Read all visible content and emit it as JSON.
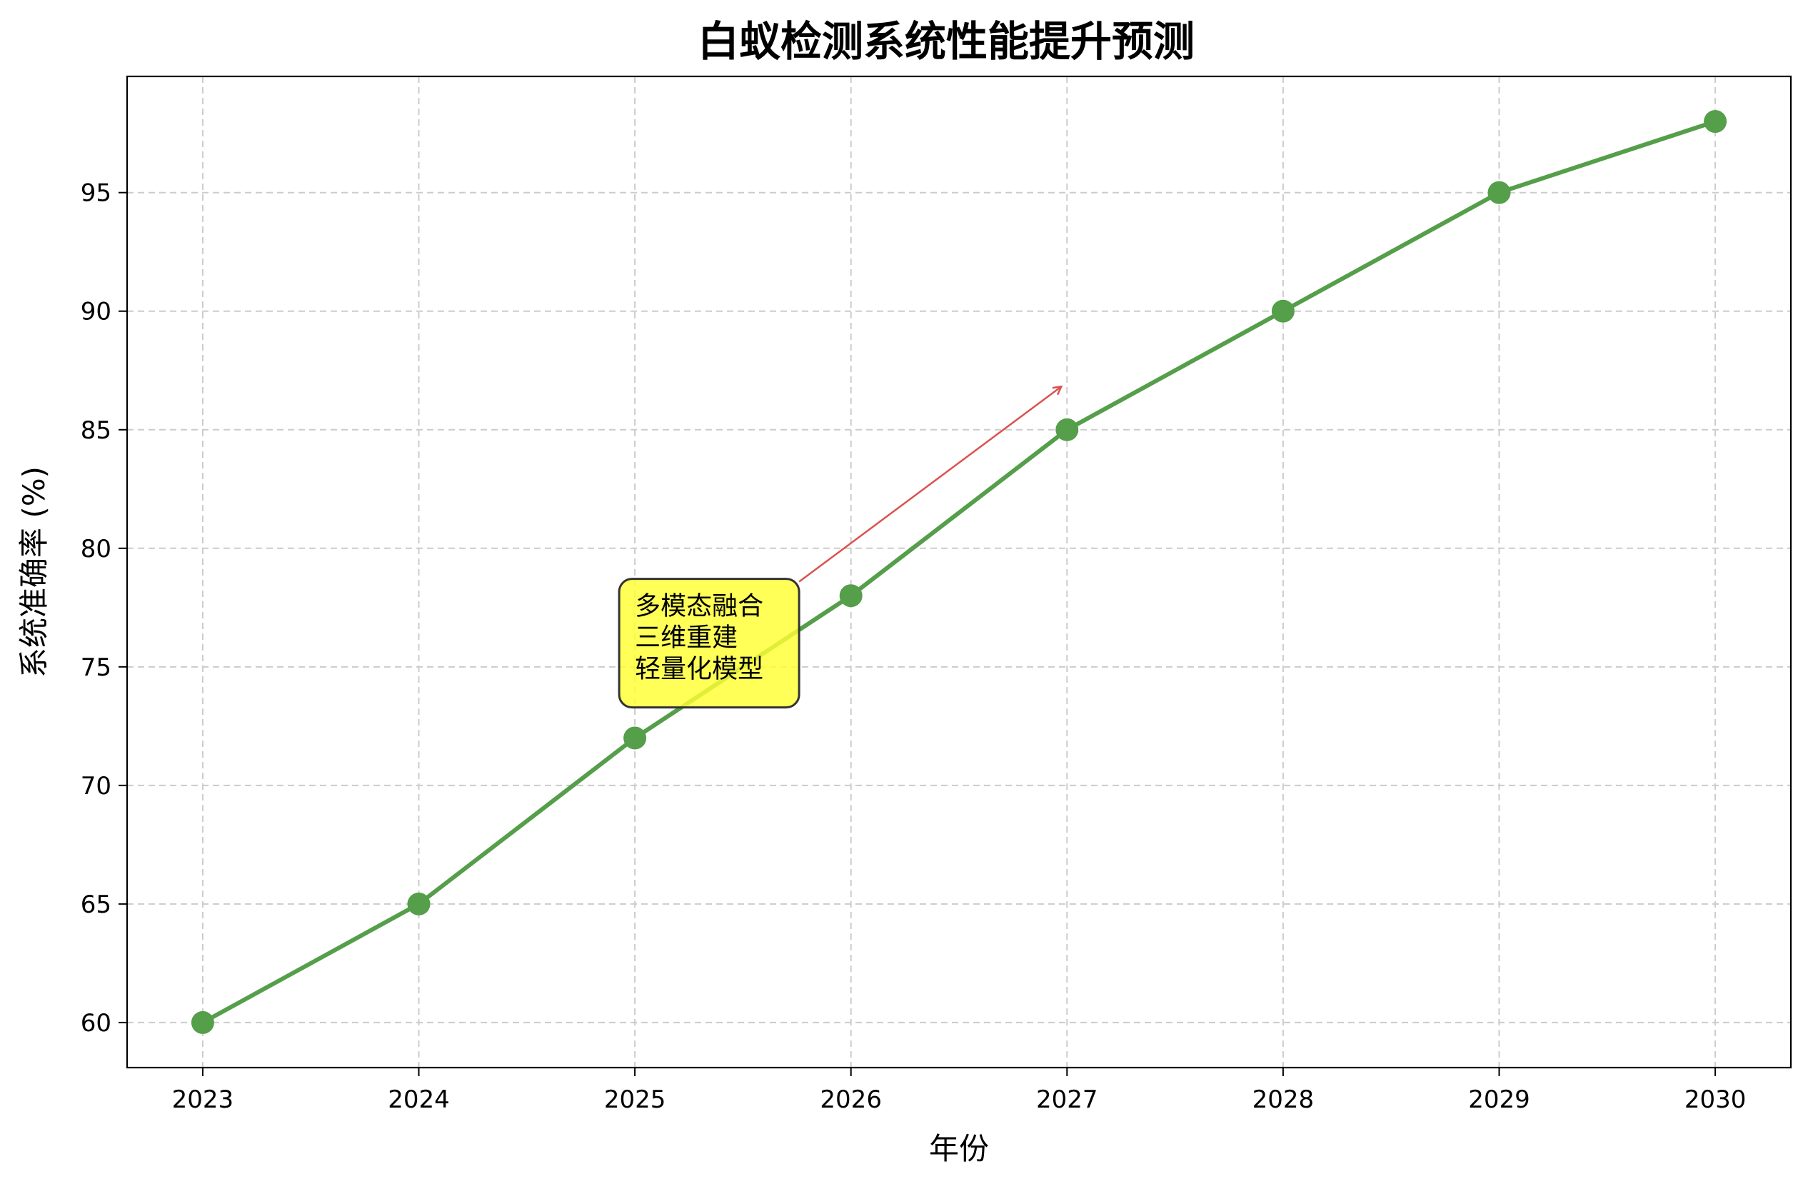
{
  "chart_data": {
    "type": "line",
    "title": "白蚁检测系统性能提升预测",
    "xlabel": "年份",
    "ylabel": "系统准确率 (%)",
    "x": [
      2023,
      2024,
      2025,
      2026,
      2027,
      2028,
      2029,
      2030
    ],
    "y_ticks": [
      60,
      65,
      70,
      75,
      80,
      85,
      90,
      95
    ],
    "xlim": [
      2022.65,
      2030.35
    ],
    "ylim": [
      58.1,
      99.9
    ],
    "grid": true,
    "series": [
      {
        "values": [
          60,
          65,
          72,
          78,
          85,
          90,
          95,
          98
        ],
        "color": "#559e4a"
      }
    ],
    "annotation": {
      "lines": [
        "多模态融合",
        "三维重建",
        "轻量化模型"
      ],
      "arrow_target": {
        "x": 2027,
        "y": 87
      },
      "text_anchor": {
        "x": 2025.0,
        "y": 76
      },
      "box_color": "#ffff33",
      "arrow_color": "#d9534f"
    }
  }
}
